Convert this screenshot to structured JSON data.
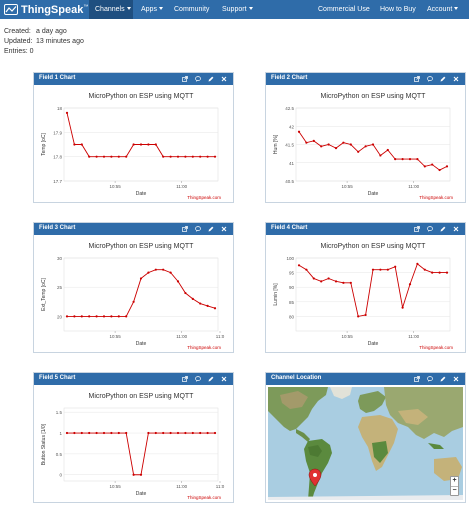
{
  "navbar": {
    "brand": "ThingSpeak",
    "brand_tm": "™",
    "items": [
      {
        "label": "Channels",
        "dropdown": true,
        "active": true
      },
      {
        "label": "Apps",
        "dropdown": true
      },
      {
        "label": "Community"
      },
      {
        "label": "Support",
        "dropdown": true
      },
      {
        "label": "Commercial Use"
      },
      {
        "label": "How to Buy"
      },
      {
        "label": "Account",
        "dropdown": true
      }
    ]
  },
  "info": [
    {
      "label": "Created:",
      "value": "a day ago"
    },
    {
      "label": "Updated:",
      "value": "13 minutes ago"
    },
    {
      "label": "Entries: 0",
      "value": ""
    }
  ],
  "colors": {
    "nav": "#2f6ca9",
    "line": "#cc0000",
    "water": "#a9cde1",
    "land": "#6b8f4a"
  },
  "panels": {
    "field1": {
      "title": "Field 1 Chart"
    },
    "field2": {
      "title": "Field 2 Chart"
    },
    "field3": {
      "title": "Field 3 Chart"
    },
    "field4": {
      "title": "Field 4 Chart"
    },
    "field5": {
      "title": "Field 5 Chart"
    },
    "map": {
      "title": "Channel Location",
      "zoom_in": "+",
      "zoom_out": "−",
      "marker_icon": "map-pin-icon"
    }
  },
  "panel_icon_names": [
    "external-link-icon",
    "comment-icon",
    "pencil-icon",
    "close-icon"
  ],
  "chart_data": [
    {
      "type": "line",
      "title": "MicroPython on ESP using MQTT",
      "xlabel": "Date",
      "ylabel": "Temp [oC]",
      "credit": "ThingSpeak.com",
      "xlim": [
        0,
        20
      ],
      "ylim": [
        17.7,
        18.0
      ],
      "yticks": [
        "18",
        "17.9",
        "17.8",
        "17.7"
      ],
      "ytick_values": [
        18,
        17.9,
        17.8,
        17.7
      ],
      "xticks": [
        {
          "x": 6.5,
          "label": "10:55"
        },
        {
          "x": 15.5,
          "label": "11:00"
        }
      ],
      "x": [
        0,
        1,
        2,
        3,
        4,
        5,
        6,
        7,
        8,
        9,
        10,
        11,
        12,
        13,
        14,
        15,
        16,
        17,
        18,
        19,
        20
      ],
      "series": [
        {
          "values": [
            17.98,
            17.85,
            17.85,
            17.8,
            17.8,
            17.8,
            17.8,
            17.8,
            17.8,
            17.85,
            17.85,
            17.85,
            17.85,
            17.8,
            17.8,
            17.8,
            17.8,
            17.8,
            17.8,
            17.8,
            17.8
          ]
        }
      ]
    },
    {
      "type": "line",
      "title": "MicroPython on ESP using MQTT",
      "xlabel": "Date",
      "ylabel": "Hum [%]",
      "credit": "ThingSpeak.com",
      "xlim": [
        0,
        20
      ],
      "ylim": [
        40.5,
        42.5
      ],
      "yticks": [
        "42.5",
        "42",
        "41.5",
        "41",
        "40.5"
      ],
      "ytick_values": [
        42.5,
        42,
        41.5,
        41,
        40.5
      ],
      "xticks": [
        {
          "x": 6.5,
          "label": "10:55"
        },
        {
          "x": 15.5,
          "label": "11:00"
        }
      ],
      "x": [
        0,
        1,
        2,
        3,
        4,
        5,
        6,
        7,
        8,
        9,
        10,
        11,
        12,
        13,
        14,
        15,
        16,
        17,
        18,
        19,
        20
      ],
      "series": [
        {
          "values": [
            41.85,
            41.55,
            41.6,
            41.45,
            41.5,
            41.4,
            41.55,
            41.5,
            41.3,
            41.45,
            41.5,
            41.2,
            41.35,
            41.1,
            41.1,
            41.1,
            41.1,
            40.9,
            40.95,
            40.8,
            40.9
          ]
        }
      ]
    },
    {
      "type": "line",
      "title": "MicroPython on ESP using MQTT",
      "xlabel": "Date",
      "ylabel": "Ext_Temp [oC]",
      "credit": "ThingSpeak.com",
      "xlim": [
        0,
        20
      ],
      "ylim": [
        17.5,
        30
      ],
      "yticks": [
        "30",
        "25",
        "20"
      ],
      "ytick_values": [
        30,
        25,
        20
      ],
      "xticks": [
        {
          "x": 6.5,
          "label": "10:55"
        },
        {
          "x": 15.5,
          "label": "11:00"
        },
        {
          "x": 21,
          "label": "11:0"
        }
      ],
      "x": [
        0,
        1,
        2,
        3,
        4,
        5,
        6,
        7,
        8,
        9,
        10,
        11,
        12,
        13,
        14,
        15,
        16,
        17,
        18,
        19,
        20
      ],
      "series": [
        {
          "values": [
            20,
            20,
            20,
            20,
            20,
            20,
            20,
            20,
            20,
            22.5,
            26.5,
            27.5,
            28,
            28,
            27.5,
            26,
            24,
            23,
            22.2,
            21.8,
            21.4
          ]
        }
      ]
    },
    {
      "type": "line",
      "title": "MicroPython on ESP using MQTT",
      "xlabel": "Date",
      "ylabel": "Lumin [%]",
      "credit": "ThingSpeak.com",
      "xlim": [
        0,
        20
      ],
      "ylim": [
        75,
        100
      ],
      "yticks": [
        "100",
        "95",
        "90",
        "85",
        "80"
      ],
      "ytick_values": [
        100,
        95,
        90,
        85,
        80
      ],
      "xticks": [
        {
          "x": 6.5,
          "label": "10:55"
        },
        {
          "x": 15.5,
          "label": "11:00"
        }
      ],
      "x": [
        0,
        1,
        2,
        3,
        4,
        5,
        6,
        7,
        8,
        9,
        10,
        11,
        12,
        13,
        14,
        15,
        16,
        17,
        18,
        19,
        20
      ],
      "series": [
        {
          "values": [
            97.5,
            96,
            93,
            92,
            93,
            92,
            91.5,
            91.5,
            80,
            80.5,
            96,
            96,
            96,
            97,
            83,
            91,
            98,
            96,
            95,
            95,
            95
          ]
        }
      ]
    },
    {
      "type": "line",
      "title": "MicroPython on ESP using MQTT",
      "xlabel": "Date",
      "ylabel": "Button Status [1/0]",
      "credit": "ThingSpeak.com",
      "xlim": [
        0,
        20
      ],
      "ylim": [
        -0.15,
        1.6
      ],
      "yticks": [
        "1.5",
        "1",
        "0.5",
        "0"
      ],
      "ytick_values": [
        1.5,
        1,
        0.5,
        0
      ],
      "xticks": [
        {
          "x": 6.5,
          "label": "10:55"
        },
        {
          "x": 15.5,
          "label": "11:00"
        },
        {
          "x": 21,
          "label": "11:0"
        }
      ],
      "x": [
        0,
        1,
        2,
        3,
        4,
        5,
        6,
        7,
        8,
        9,
        10,
        11,
        12,
        13,
        14,
        15,
        16,
        17,
        18,
        19,
        20
      ],
      "series": [
        {
          "values": [
            1,
            1,
            1,
            1,
            1,
            1,
            1,
            1,
            1,
            0,
            0,
            1,
            1,
            1,
            1,
            1,
            1,
            1,
            1,
            1,
            1
          ]
        }
      ]
    }
  ]
}
